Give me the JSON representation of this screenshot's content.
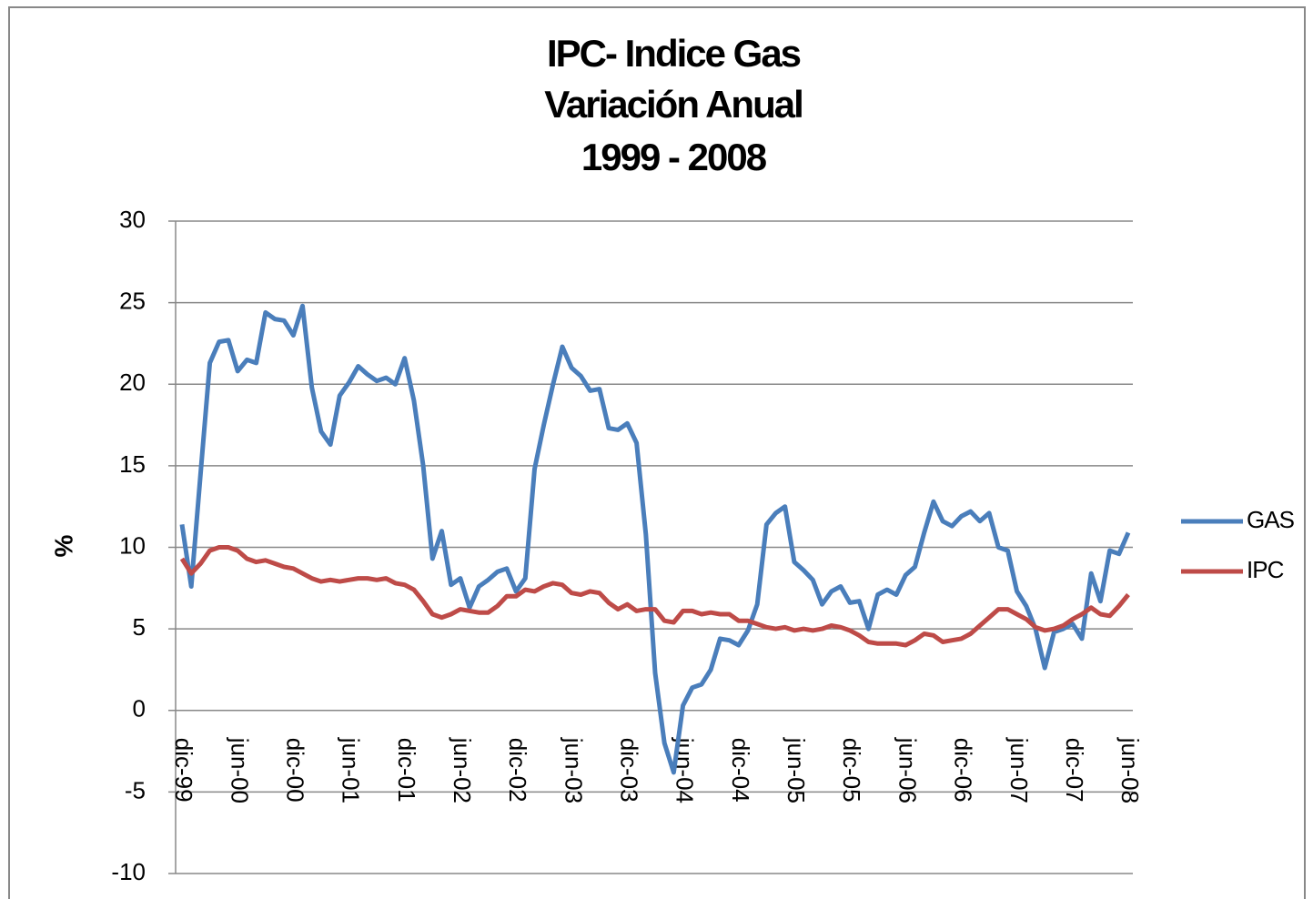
{
  "chart_data": {
    "type": "line",
    "title": [
      "IPC- Indice Gas",
      "Variación Anual",
      "1999 - 2008"
    ],
    "ylabel": "%",
    "categories": [
      "dic-99",
      null,
      null,
      null,
      null,
      null,
      "jun-00",
      null,
      null,
      null,
      null,
      null,
      "dic-00",
      null,
      null,
      null,
      null,
      null,
      "jun-01",
      null,
      null,
      null,
      null,
      null,
      "dic-01",
      null,
      null,
      null,
      null,
      null,
      "jun-02",
      null,
      null,
      null,
      null,
      null,
      "dic-02",
      null,
      null,
      null,
      null,
      null,
      "jun-03",
      null,
      null,
      null,
      null,
      null,
      "dic-03",
      null,
      null,
      null,
      null,
      null,
      "jun-04",
      null,
      null,
      null,
      null,
      null,
      "dic-04",
      null,
      null,
      null,
      null,
      null,
      "jun-05",
      null,
      null,
      null,
      null,
      null,
      "dic-05",
      null,
      null,
      null,
      null,
      null,
      "jun-06",
      null,
      null,
      null,
      null,
      null,
      "dic-06",
      null,
      null,
      null,
      null,
      null,
      "jun-07",
      null,
      null,
      null,
      null,
      null,
      "dic-07",
      null,
      null,
      null,
      null,
      null,
      "jun-08"
    ],
    "series": [
      {
        "name": "GAS",
        "color": "#4a7ebb",
        "values": [
          11.4,
          7.6,
          14.5,
          21.3,
          22.6,
          22.7,
          20.8,
          21.5,
          21.3,
          24.4,
          24.0,
          23.9,
          23.0,
          24.8,
          19.8,
          17.1,
          16.3,
          19.3,
          20.1,
          21.1,
          20.6,
          20.2,
          20.4,
          20.0,
          21.6,
          19.0,
          15.0,
          9.3,
          11.0,
          7.7,
          8.1,
          6.3,
          7.6,
          8.0,
          8.5,
          8.7,
          7.3,
          8.1,
          14.8,
          17.5,
          20.0,
          22.3,
          21.0,
          20.5,
          19.6,
          19.7,
          17.3,
          17.2,
          17.6,
          16.4,
          10.8,
          2.3,
          -2.0,
          -3.8,
          0.3,
          1.4,
          1.6,
          2.5,
          4.4,
          4.3,
          4.0,
          4.9,
          6.5,
          11.4,
          12.1,
          12.5,
          9.1,
          8.6,
          8.0,
          6.5,
          7.3,
          7.6,
          6.6,
          6.7,
          5.0,
          7.1,
          7.4,
          7.1,
          8.3,
          8.8,
          10.9,
          12.8,
          11.6,
          11.3,
          11.9,
          12.2,
          11.6,
          12.1,
          10.0,
          9.8,
          7.3,
          6.4,
          5.0,
          2.6,
          4.8,
          5.0,
          5.3,
          4.4,
          8.4,
          6.7,
          9.8,
          9.6,
          10.9
        ]
      },
      {
        "name": "IPC",
        "color": "#be4b48",
        "values": [
          9.3,
          8.4,
          9.0,
          9.8,
          10.0,
          10.0,
          9.8,
          9.3,
          9.1,
          9.2,
          9.0,
          8.8,
          8.7,
          8.4,
          8.1,
          7.9,
          8.0,
          7.9,
          8.0,
          8.1,
          8.1,
          8.0,
          8.1,
          7.8,
          7.7,
          7.4,
          6.7,
          5.9,
          5.7,
          5.9,
          6.2,
          6.1,
          6.0,
          6.0,
          6.4,
          7.0,
          7.0,
          7.4,
          7.3,
          7.6,
          7.8,
          7.7,
          7.2,
          7.1,
          7.3,
          7.2,
          6.6,
          6.2,
          6.5,
          6.1,
          6.2,
          6.2,
          5.5,
          5.4,
          6.1,
          6.1,
          5.9,
          6.0,
          5.9,
          5.9,
          5.5,
          5.5,
          5.3,
          5.1,
          5.0,
          5.1,
          4.9,
          5.0,
          4.9,
          5.0,
          5.2,
          5.1,
          4.9,
          4.6,
          4.2,
          4.1,
          4.1,
          4.1,
          4.0,
          4.3,
          4.7,
          4.6,
          4.2,
          4.3,
          4.4,
          4.7,
          5.2,
          5.7,
          6.2,
          6.2,
          5.9,
          5.6,
          5.1,
          4.9,
          5.0,
          5.2,
          5.6,
          5.9,
          6.3,
          5.9,
          5.8,
          6.4,
          7.1
        ]
      }
    ],
    "ylim": [
      -10,
      30
    ],
    "yticks": [
      -10,
      -5,
      0,
      5,
      10,
      15,
      20,
      25,
      30
    ],
    "grid": true,
    "legend": "right"
  }
}
